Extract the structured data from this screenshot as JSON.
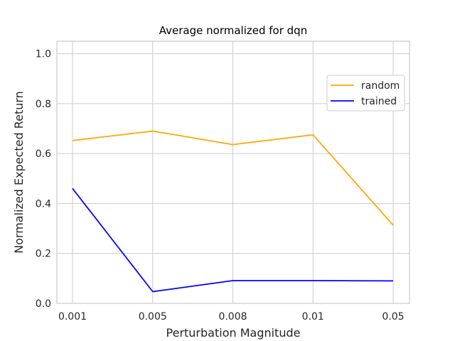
{
  "chart_data": {
    "type": "line",
    "title": "Average normalized for dqn",
    "xlabel": "Perturbation Magnitude",
    "ylabel": "Normalized Expected Return",
    "categories": [
      "0.001",
      "0.005",
      "0.008",
      "0.01",
      "0.05"
    ],
    "ylim": [
      0.0,
      1.05
    ],
    "yticks": [
      "0.0",
      "0.2",
      "0.4",
      "0.6",
      "0.8",
      "1.0"
    ],
    "grid": true,
    "legend_position": "top-right",
    "series": [
      {
        "name": "random",
        "color": "#ffa500",
        "values": [
          0.652,
          0.69,
          0.636,
          0.675,
          0.313
        ]
      },
      {
        "name": "trained",
        "color": "#0000ff",
        "values": [
          0.46,
          0.047,
          0.091,
          0.091,
          0.09
        ]
      }
    ]
  }
}
